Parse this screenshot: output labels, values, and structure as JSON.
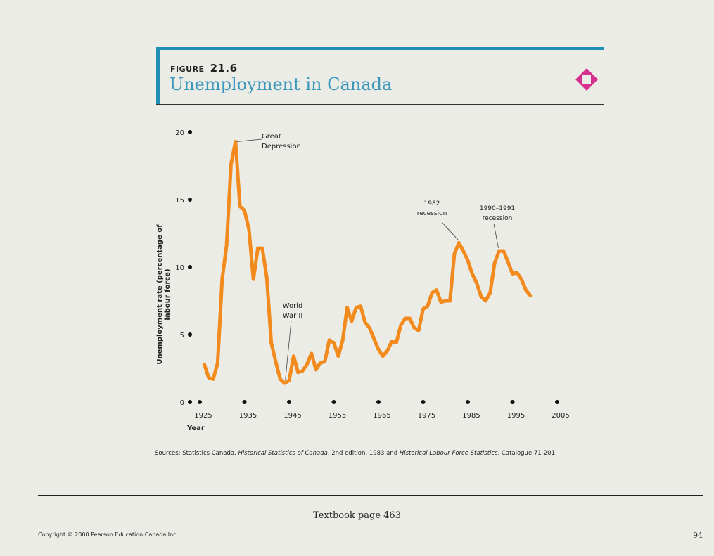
{
  "figure": {
    "label": "FIGURE",
    "number": "21.6",
    "title": "Unemployment in Canada",
    "accent_color": "#1f8fb5",
    "icon": "diamond-square-icon",
    "icon_color": "#d6308e"
  },
  "chart_data": {
    "type": "line",
    "title": "Unemployment in Canada",
    "xlabel": "Year",
    "ylabel": "Unemployment rate (percentage of labour force)",
    "xlim": [
      1925,
      2005
    ],
    "ylim": [
      0,
      20
    ],
    "x_ticks": [
      "1925",
      "1935",
      "1945",
      "1955",
      "1965",
      "1975",
      "1985",
      "1995",
      "2005"
    ],
    "y_ticks": [
      "0",
      "5",
      "10",
      "15",
      "20"
    ],
    "grid": false,
    "line_color": "#f28a1e",
    "x": [
      1926,
      1927,
      1928,
      1929,
      1930,
      1931,
      1932,
      1933,
      1934,
      1935,
      1936,
      1937,
      1938,
      1939,
      1940,
      1941,
      1942,
      1943,
      1944,
      1945,
      1946,
      1947,
      1948,
      1949,
      1950,
      1951,
      1952,
      1953,
      1954,
      1955,
      1956,
      1957,
      1958,
      1959,
      1960,
      1961,
      1962,
      1963,
      1964,
      1965,
      1966,
      1967,
      1968,
      1969,
      1970,
      1971,
      1972,
      1973,
      1974,
      1975,
      1976,
      1977,
      1978,
      1979,
      1980,
      1981,
      1982,
      1983,
      1984,
      1985,
      1986,
      1987,
      1988,
      1989,
      1990,
      1991,
      1992,
      1993,
      1994,
      1995,
      1996,
      1997,
      1998,
      1999
    ],
    "values": [
      2.8,
      1.8,
      1.7,
      2.9,
      9.1,
      11.6,
      17.6,
      19.3,
      14.5,
      14.2,
      12.8,
      9.1,
      11.4,
      11.4,
      9.2,
      4.4,
      3.0,
      1.7,
      1.4,
      1.6,
      3.4,
      2.2,
      2.3,
      2.8,
      3.6,
      2.4,
      2.9,
      3.0,
      4.6,
      4.4,
      3.4,
      4.6,
      7.0,
      6.0,
      7.0,
      7.1,
      5.9,
      5.5,
      4.7,
      3.9,
      3.4,
      3.8,
      4.5,
      4.4,
      5.7,
      6.2,
      6.2,
      5.5,
      5.3,
      6.9,
      7.1,
      8.1,
      8.3,
      7.4,
      7.5,
      7.5,
      11.0,
      11.8,
      11.2,
      10.5,
      9.5,
      8.8,
      7.8,
      7.5,
      8.1,
      10.3,
      11.2,
      11.2,
      10.4,
      9.5,
      9.6,
      9.1,
      8.3,
      7.9
    ],
    "annotations": [
      {
        "lines": [
          "Great",
          "Depression"
        ],
        "x": 1933,
        "y": 19.3
      },
      {
        "lines": [
          "World",
          "War II"
        ],
        "x": 1944,
        "y": 1.4
      },
      {
        "lines": [
          "1982",
          "recession"
        ],
        "x": 1983,
        "y": 11.8
      },
      {
        "lines": [
          "1990–1991",
          "recession"
        ],
        "x": 1992,
        "y": 11.2
      }
    ]
  },
  "sources": {
    "prefix": "Sources: Statistics Canada, ",
    "title1": "Historical Statistics of Canada",
    "middle": ", 2nd edition, 1983 and ",
    "title2": "Historical Labour Force Statistics",
    "suffix": ", Catalogue 71-201."
  },
  "footer": {
    "textbook_page": "Textbook page 463",
    "copyright": "Copyright © 2000 Pearson Education Canada Inc.",
    "page_number": "94"
  }
}
